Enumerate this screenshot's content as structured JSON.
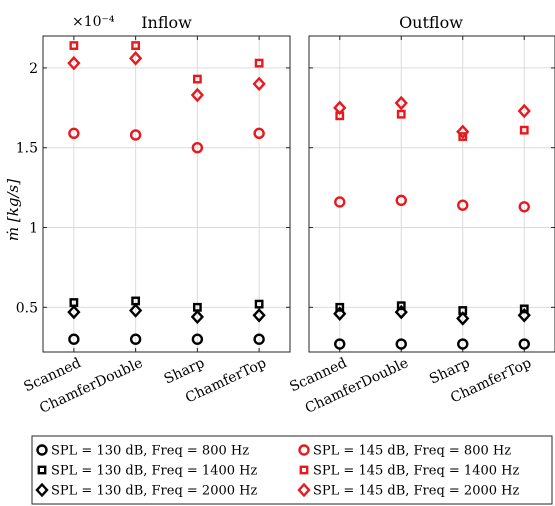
{
  "chart_data": {
    "type": "scatter",
    "ylabel": "ṁ [kg/s]",
    "y_exponent_label": "×10⁻⁴",
    "y_scale_factor": 0.0001,
    "ylim": [
      0.22,
      2.2
    ],
    "yticks": [
      0.5,
      1,
      1.5,
      2
    ],
    "ytick_labels": [
      "0.5",
      "1",
      "1.5",
      "2"
    ],
    "grid": true,
    "categories": [
      "Scanned",
      "ChamferDouble",
      "Sharp",
      "ChamferTop"
    ],
    "legend_placement": "bottom",
    "colors": {
      "black": "#000000",
      "red": "#e8191e"
    },
    "series": [
      {
        "name": "SPL = 130 dB, Freq = 800 Hz",
        "color": "black",
        "marker": "circle"
      },
      {
        "name": "SPL = 145 dB, Freq = 800 Hz",
        "color": "red",
        "marker": "circle"
      },
      {
        "name": "SPL = 130 dB, Freq = 1400 Hz",
        "color": "black",
        "marker": "square"
      },
      {
        "name": "SPL = 145 dB, Freq = 1400 Hz",
        "color": "red",
        "marker": "square"
      },
      {
        "name": "SPL = 130 dB, Freq = 2000 Hz",
        "color": "black",
        "marker": "diamond"
      },
      {
        "name": "SPL = 145 dB, Freq = 2000 Hz",
        "color": "red",
        "marker": "diamond"
      }
    ],
    "panels": [
      {
        "title": "Inflow",
        "values": [
          [
            0.3,
            0.3,
            0.3,
            0.3
          ],
          [
            1.59,
            1.58,
            1.5,
            1.59
          ],
          [
            0.53,
            0.54,
            0.5,
            0.52
          ],
          [
            2.14,
            2.14,
            1.93,
            2.03
          ],
          [
            0.47,
            0.48,
            0.44,
            0.45
          ],
          [
            2.03,
            2.06,
            1.83,
            1.9
          ]
        ]
      },
      {
        "title": "Outflow",
        "values": [
          [
            0.27,
            0.27,
            0.27,
            0.27
          ],
          [
            1.16,
            1.17,
            1.14,
            1.13
          ],
          [
            0.5,
            0.51,
            0.48,
            0.49
          ],
          [
            1.7,
            1.71,
            1.57,
            1.61
          ],
          [
            0.46,
            0.47,
            0.43,
            0.45
          ],
          [
            1.75,
            1.78,
            1.6,
            1.73
          ]
        ]
      }
    ]
  }
}
